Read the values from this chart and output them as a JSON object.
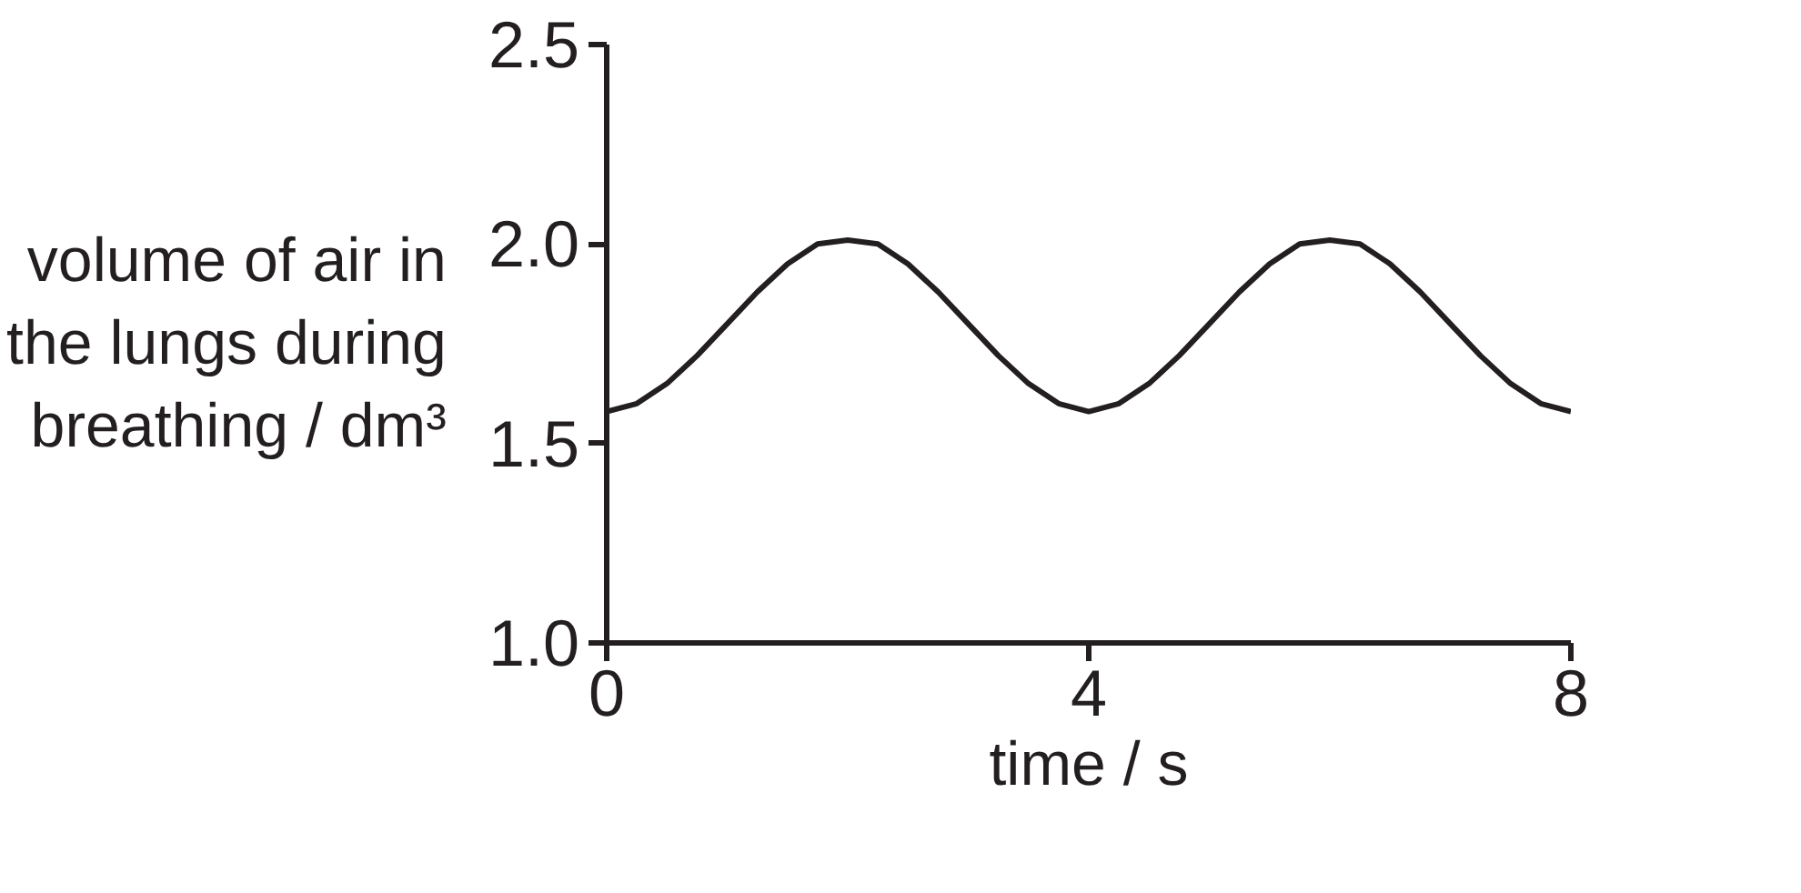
{
  "chart_data": {
    "type": "line",
    "xlabel": "time / s",
    "ylabel": "volume of air in\nthe lungs during\nbreathing / dm³",
    "x": [
      0,
      0.25,
      0.5,
      0.75,
      1,
      1.25,
      1.5,
      1.75,
      2,
      2.25,
      2.5,
      2.75,
      3,
      3.25,
      3.5,
      3.75,
      4,
      4.25,
      4.5,
      4.75,
      5,
      5.25,
      5.5,
      5.75,
      6,
      6.25,
      6.5,
      6.75,
      7,
      7.25,
      7.5,
      7.75,
      8
    ],
    "series": [
      {
        "color": "#231f20",
        "values": [
          1.58,
          1.6,
          1.65,
          1.72,
          1.8,
          1.88,
          1.95,
          2.0,
          2.01,
          2.0,
          1.95,
          1.88,
          1.8,
          1.72,
          1.65,
          1.6,
          1.58,
          1.6,
          1.65,
          1.72,
          1.8,
          1.88,
          1.95,
          2.0,
          2.01,
          2.0,
          1.95,
          1.88,
          1.8,
          1.72,
          1.65,
          1.6,
          1.58
        ]
      }
    ],
    "xlim": [
      0,
      8
    ],
    "xticks": [
      0,
      4,
      8
    ],
    "ylim": [
      1.0,
      2.5
    ],
    "yticks": [
      {
        "value": 1.0,
        "label": "1.0"
      },
      {
        "value": 1.5,
        "label": "1.5"
      },
      {
        "value": 2.0,
        "label": "2.0"
      },
      {
        "value": 2.5,
        "label": "2.5"
      }
    ],
    "grid": false,
    "marker": "none",
    "line_style": "solid"
  }
}
